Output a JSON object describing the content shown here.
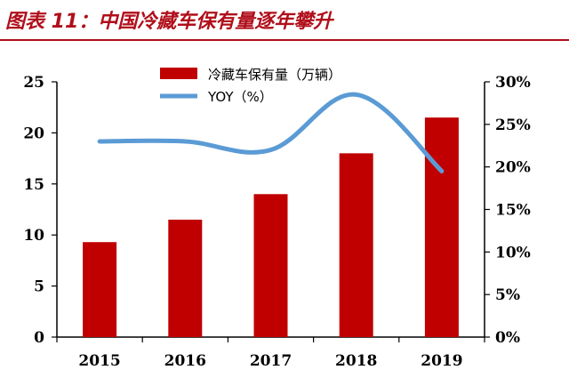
{
  "figure": {
    "title": "图表 11：中国冷藏车保有量逐年攀升",
    "accent_color": "#b00f1b"
  },
  "chart_data": {
    "type": "bar",
    "title": "",
    "categories": [
      "2015",
      "2016",
      "2017",
      "2018",
      "2019"
    ],
    "series": [
      {
        "name": "冷藏车保有量（万辆）",
        "type": "bar",
        "axis": "left",
        "color": "#c00000",
        "values": [
          9.3,
          11.5,
          14.0,
          18.0,
          21.5
        ]
      },
      {
        "name": "YOY（%）",
        "type": "line",
        "axis": "right",
        "color": "#5b9bd5",
        "values": [
          23.0,
          23.0,
          22.0,
          28.5,
          19.5
        ]
      }
    ],
    "y_left": {
      "min": 0,
      "max": 25,
      "ticks": [
        "0",
        "5",
        "10",
        "15",
        "20",
        "25"
      ]
    },
    "y_right": {
      "min": 0,
      "max": 30,
      "ticks": [
        "0%",
        "5%",
        "10%",
        "15%",
        "20%",
        "25%",
        "30%"
      ]
    },
    "legend_position": "top-center",
    "grid": false
  }
}
